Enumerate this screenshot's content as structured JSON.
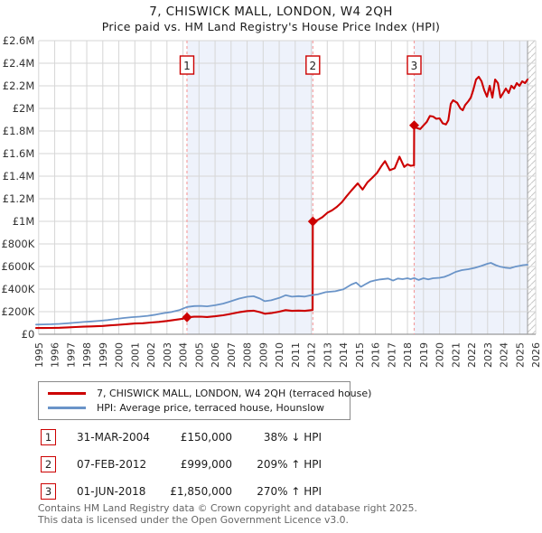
{
  "header": {
    "title": "7, CHISWICK MALL, LONDON, W4 2QH",
    "subtitle": "Price paid vs. HM Land Registry's House Price Index (HPI)"
  },
  "legend": {
    "items": [
      {
        "label": "7, CHISWICK MALL, LONDON, W4 2QH (terraced house)",
        "color": "#cc0000"
      },
      {
        "label": "HPI: Average price, terraced house, Hounslow",
        "color": "#6a94c8"
      }
    ]
  },
  "transactions": [
    {
      "num": "1",
      "date": "31-MAR-2004",
      "price": "£150,000",
      "hpi": "38% ↓ HPI"
    },
    {
      "num": "2",
      "date": "07-FEB-2012",
      "price": "£999,000",
      "hpi": "209% ↑ HPI"
    },
    {
      "num": "3",
      "date": "01-JUN-2018",
      "price": "£1,850,000",
      "hpi": "270% ↑ HPI"
    }
  ],
  "footer": {
    "line1": "Contains HM Land Registry data © Crown copyright and database right 2025.",
    "line2": "This data is licensed under the Open Government Licence v3.0."
  },
  "chart_data": {
    "type": "line",
    "title": "7, CHISWICK MALL, LONDON, W4 2QH",
    "subtitle": "Price paid vs. HM Land Registry's House Price Index (HPI)",
    "y_unit": "GBP thousands",
    "x_axis": {
      "min": 1994.84,
      "max": 2026.0,
      "ticks": [
        1995,
        1996,
        1997,
        1998,
        1999,
        2000,
        2001,
        2002,
        2003,
        2004,
        2005,
        2006,
        2007,
        2008,
        2009,
        2010,
        2011,
        2012,
        2013,
        2014,
        2015,
        2016,
        2017,
        2018,
        2019,
        2020,
        2021,
        2022,
        2023,
        2024,
        2025,
        2026
      ]
    },
    "y_axis": {
      "min": 0,
      "max": 2600,
      "tick_step": 200,
      "tick_labels": [
        "£0",
        "£200K",
        "£400K",
        "£600K",
        "£800K",
        "£1M",
        "£1.2M",
        "£1.4M",
        "£1.6M",
        "£1.8M",
        "£2M",
        "£2.2M",
        "£2.4M",
        "£2.6M"
      ]
    },
    "grid": true,
    "legend_position": "bottom",
    "colors": {
      "shade": "#eef2fb",
      "grid": "#d6d6d6",
      "dashed": "#f49a9a",
      "axis": "#999999",
      "hatch": "#c9c9c9",
      "box_border": "#cc0000",
      "tick_text": "#333333"
    },
    "shaded_spans": [
      [
        2004.25,
        2012.1
      ],
      [
        2018.42,
        2025.49
      ]
    ],
    "future_span": [
      2025.49,
      2026.0
    ],
    "sales": [
      {
        "num": "1",
        "year": 2004.25,
        "value": 150
      },
      {
        "num": "2",
        "year": 2012.1,
        "value": 999
      },
      {
        "num": "3",
        "year": 2018.42,
        "value": 1850
      }
    ],
    "series": [
      {
        "name": "7, CHISWICK MALL, LONDON, W4 2QH (terraced house)",
        "color": "#cc0000",
        "width": 2.1,
        "points": [
          [
            1994.84,
            55
          ],
          [
            1995.3,
            55
          ],
          [
            1995.8,
            56
          ],
          [
            1996.3,
            58
          ],
          [
            1996.8,
            61
          ],
          [
            1997.3,
            64
          ],
          [
            1997.8,
            67
          ],
          [
            1998.3,
            70
          ],
          [
            1999,
            74
          ],
          [
            1999.5,
            79
          ],
          [
            2000,
            84
          ],
          [
            2000.5,
            90
          ],
          [
            2001,
            95
          ],
          [
            2001.5,
            98
          ],
          [
            2002,
            104
          ],
          [
            2002.5,
            110
          ],
          [
            2003,
            118
          ],
          [
            2003.5,
            127
          ],
          [
            2004,
            138
          ],
          [
            2004.25,
            150
          ],
          [
            2004.7,
            155
          ],
          [
            2005.1,
            156
          ],
          [
            2005.5,
            153
          ],
          [
            2006,
            159
          ],
          [
            2006.5,
            168
          ],
          [
            2007,
            181
          ],
          [
            2007.5,
            195
          ],
          [
            2008,
            206
          ],
          [
            2008.4,
            209
          ],
          [
            2008.8,
            196
          ],
          [
            2009.1,
            182
          ],
          [
            2009.5,
            187
          ],
          [
            2010,
            200
          ],
          [
            2010.4,
            214
          ],
          [
            2010.8,
            207
          ],
          [
            2011.2,
            210
          ],
          [
            2011.6,
            207
          ],
          [
            2012,
            214
          ],
          [
            2012.09,
            215
          ],
          [
            2012.1,
            999
          ],
          [
            2012.4,
            1012
          ],
          [
            2012.7,
            1038
          ],
          [
            2013,
            1075
          ],
          [
            2013.3,
            1098
          ],
          [
            2013.6,
            1128
          ],
          [
            2013.9,
            1168
          ],
          [
            2014.2,
            1222
          ],
          [
            2014.5,
            1272
          ],
          [
            2014.9,
            1336
          ],
          [
            2015.2,
            1282
          ],
          [
            2015.5,
            1345
          ],
          [
            2015.8,
            1385
          ],
          [
            2016.1,
            1428
          ],
          [
            2016.4,
            1495
          ],
          [
            2016.6,
            1533
          ],
          [
            2016.9,
            1453
          ],
          [
            2017.2,
            1470
          ],
          [
            2017.5,
            1572
          ],
          [
            2017.8,
            1482
          ],
          [
            2018,
            1505
          ],
          [
            2018.2,
            1492
          ],
          [
            2018.41,
            1496
          ],
          [
            2018.42,
            1850
          ],
          [
            2018.6,
            1825
          ],
          [
            2018.8,
            1818
          ],
          [
            2019,
            1850
          ],
          [
            2019.2,
            1880
          ],
          [
            2019.4,
            1933
          ],
          [
            2019.6,
            1928
          ],
          [
            2019.8,
            1908
          ],
          [
            2020,
            1912
          ],
          [
            2020.2,
            1868
          ],
          [
            2020.4,
            1858
          ],
          [
            2020.55,
            1895
          ],
          [
            2020.7,
            2040
          ],
          [
            2020.85,
            2072
          ],
          [
            2021.1,
            2050
          ],
          [
            2021.3,
            2000
          ],
          [
            2021.45,
            1984
          ],
          [
            2021.6,
            2030
          ],
          [
            2021.8,
            2064
          ],
          [
            2021.95,
            2096
          ],
          [
            2022.1,
            2160
          ],
          [
            2022.28,
            2256
          ],
          [
            2022.45,
            2280
          ],
          [
            2022.62,
            2240
          ],
          [
            2022.79,
            2160
          ],
          [
            2022.96,
            2104
          ],
          [
            2023.13,
            2200
          ],
          [
            2023.3,
            2096
          ],
          [
            2023.47,
            2256
          ],
          [
            2023.64,
            2224
          ],
          [
            2023.8,
            2096
          ],
          [
            2023.97,
            2136
          ],
          [
            2024.14,
            2176
          ],
          [
            2024.31,
            2136
          ],
          [
            2024.48,
            2200
          ],
          [
            2024.65,
            2176
          ],
          [
            2024.82,
            2224
          ],
          [
            2024.99,
            2200
          ],
          [
            2025.16,
            2240
          ],
          [
            2025.33,
            2224
          ],
          [
            2025.49,
            2256
          ]
        ]
      },
      {
        "name": "HPI: Average price, terraced house, Hounslow",
        "color": "#6a94c8",
        "width": 1.8,
        "points": [
          [
            1994.84,
            86
          ],
          [
            1995.3,
            87
          ],
          [
            1995.8,
            89
          ],
          [
            1996.3,
            92
          ],
          [
            1996.8,
            97
          ],
          [
            1997.3,
            103
          ],
          [
            1997.8,
            109
          ],
          [
            1998.3,
            114
          ],
          [
            1998.8,
            119
          ],
          [
            1999.3,
            126
          ],
          [
            1999.8,
            135
          ],
          [
            2000.3,
            144
          ],
          [
            2000.8,
            151
          ],
          [
            2001.3,
            156
          ],
          [
            2001.8,
            163
          ],
          [
            2002.3,
            174
          ],
          [
            2002.8,
            187
          ],
          [
            2003.3,
            198
          ],
          [
            2003.8,
            215
          ],
          [
            2004.25,
            242
          ],
          [
            2004.7,
            250
          ],
          [
            2005.1,
            251
          ],
          [
            2005.5,
            247
          ],
          [
            2006,
            257
          ],
          [
            2006.5,
            271
          ],
          [
            2007,
            293
          ],
          [
            2007.5,
            316
          ],
          [
            2008,
            332
          ],
          [
            2008.4,
            337
          ],
          [
            2008.8,
            316
          ],
          [
            2009.1,
            293
          ],
          [
            2009.5,
            301
          ],
          [
            2010,
            322
          ],
          [
            2010.4,
            346
          ],
          [
            2010.8,
            333
          ],
          [
            2011.2,
            338
          ],
          [
            2011.6,
            334
          ],
          [
            2012,
            346
          ],
          [
            2012.4,
            353
          ],
          [
            2012.9,
            373
          ],
          [
            2013.5,
            381
          ],
          [
            2014,
            398
          ],
          [
            2014.5,
            440
          ],
          [
            2014.8,
            458
          ],
          [
            2015.1,
            420
          ],
          [
            2015.4,
            445
          ],
          [
            2015.7,
            467
          ],
          [
            2016,
            478
          ],
          [
            2016.3,
            486
          ],
          [
            2016.8,
            494
          ],
          [
            2017.1,
            475
          ],
          [
            2017.4,
            494
          ],
          [
            2017.7,
            488
          ],
          [
            2018,
            496
          ],
          [
            2018.2,
            488
          ],
          [
            2018.42,
            498
          ],
          [
            2018.7,
            481
          ],
          [
            2019,
            496
          ],
          [
            2019.3,
            486
          ],
          [
            2019.6,
            496
          ],
          [
            2020,
            500
          ],
          [
            2020.3,
            508
          ],
          [
            2020.6,
            525
          ],
          [
            2021,
            552
          ],
          [
            2021.4,
            568
          ],
          [
            2021.8,
            576
          ],
          [
            2022.2,
            588
          ],
          [
            2022.6,
            605
          ],
          [
            2023,
            625
          ],
          [
            2023.2,
            632
          ],
          [
            2023.5,
            612
          ],
          [
            2023.8,
            598
          ],
          [
            2024.1,
            590
          ],
          [
            2024.4,
            585
          ],
          [
            2024.7,
            598
          ],
          [
            2025,
            606
          ],
          [
            2025.2,
            612
          ],
          [
            2025.49,
            616
          ]
        ]
      }
    ]
  }
}
